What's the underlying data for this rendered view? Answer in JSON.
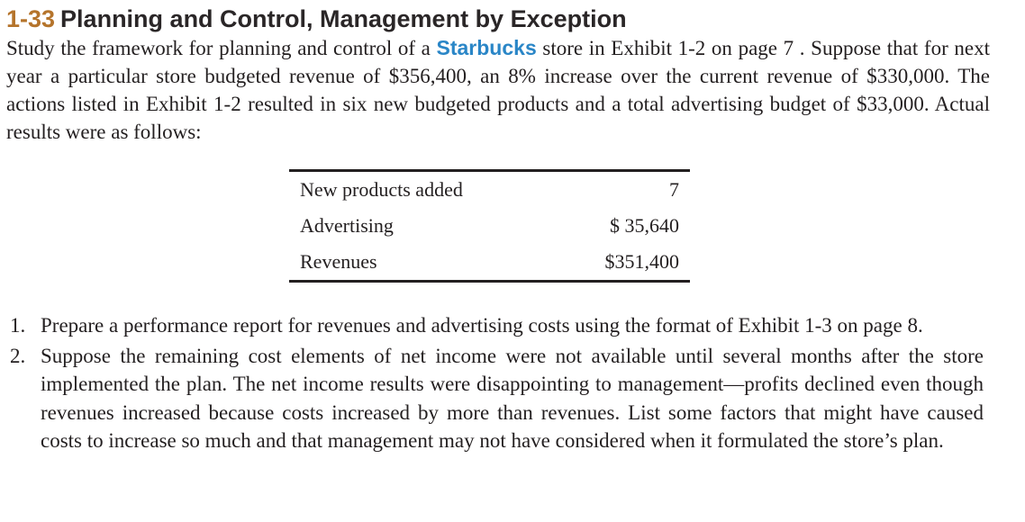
{
  "problem": {
    "number": "1-33",
    "title": "Planning and Control, Management by Exception"
  },
  "intro": {
    "before_brand": "Study the framework for planning and control of a ",
    "brand": "Starbucks",
    "after_brand": " store in Exhibit 1-2 on page 7 . Suppose that for next year a particular store budgeted revenue of $356,400, an 8% increase over the current revenue of $330,000. The actions listed in Exhibit 1-2 resulted in six new budgeted products and a total advertising budget of $33,000. Actual results were as follows:"
  },
  "results_table": [
    {
      "label": "New products added",
      "value": "7"
    },
    {
      "label": "Advertising",
      "value": "$ 35,640"
    },
    {
      "label": "Revenues",
      "value": "$351,400"
    }
  ],
  "questions": [
    {
      "number": "1.",
      "text": "Prepare a performance report for revenues and advertising costs using the format of Exhibit 1-3 on page 8."
    },
    {
      "number": "2.",
      "text": "Suppose the remaining cost elements of net income were not available until several months after the store implemented the plan. The net income results were disappointing to management—profits declined even though revenues increased because costs increased by more than revenues. List some factors that might have caused costs to increase so much and that management may not have considered when it formulated the store’s plan."
    }
  ],
  "colors": {
    "problem_number": "#b5742b",
    "brand": "#2a86c7",
    "text": "#231f20"
  }
}
